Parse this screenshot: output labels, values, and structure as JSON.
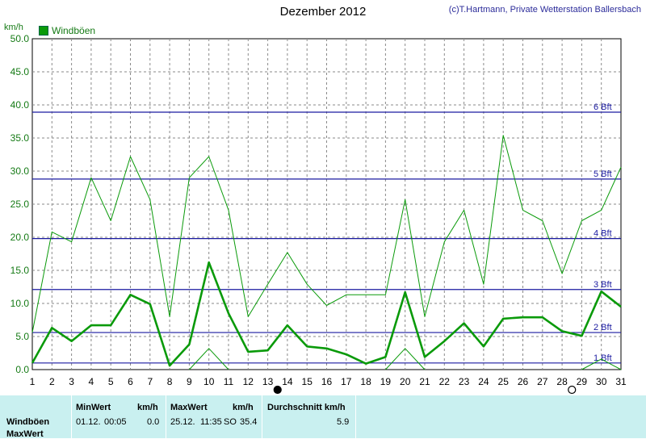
{
  "title": "Dezember 2012",
  "copyright": "(c)T.Hartmann, Private Wetterstation Ballersbach",
  "legend": {
    "label": "Windböen",
    "color": "#0a9a0a"
  },
  "y_unit": "km/h",
  "chart_data": {
    "type": "line",
    "title": "Dezember 2012",
    "xlabel": "",
    "ylabel": "km/h",
    "x": [
      1,
      2,
      3,
      4,
      5,
      6,
      7,
      8,
      9,
      10,
      11,
      12,
      13,
      14,
      15,
      16,
      17,
      18,
      19,
      20,
      21,
      22,
      23,
      24,
      25,
      26,
      27,
      28,
      29,
      30,
      31
    ],
    "xlim": [
      1,
      31
    ],
    "ylim": [
      0,
      50
    ],
    "yticks": [
      "0.0",
      "5.0",
      "10.0",
      "15.0",
      "20.0",
      "25.0",
      "30.0",
      "35.0",
      "40.0",
      "45.0",
      "50.0"
    ],
    "grid": true,
    "legend_position": "top-left",
    "series": [
      {
        "name": "Windböen",
        "role": "average",
        "color": "#0a9a0a",
        "values": [
          1.0,
          6.3,
          4.3,
          6.7,
          6.7,
          11.3,
          9.9,
          0.6,
          3.8,
          16.2,
          8.5,
          2.7,
          2.9,
          6.7,
          3.5,
          3.2,
          2.3,
          0.9,
          1.9,
          11.7,
          1.9,
          4.3,
          7.0,
          3.5,
          7.7,
          7.9,
          7.9,
          5.8,
          5.1,
          11.8,
          9.5
        ]
      },
      {
        "name": "",
        "role": "max",
        "color": "#0a9a0a",
        "values": [
          5.6,
          20.8,
          19.3,
          29.0,
          22.5,
          32.2,
          25.7,
          8.0,
          29.0,
          32.2,
          24.1,
          8.0,
          12.9,
          17.7,
          12.9,
          9.7,
          11.3,
          11.3,
          11.3,
          25.7,
          8.0,
          19.3,
          24.1,
          12.9,
          35.4,
          24.1,
          22.5,
          14.5,
          22.5,
          24.1,
          30.6
        ]
      },
      {
        "name": "",
        "role": "min",
        "color": "#0a9a0a",
        "values": [
          null,
          null,
          null,
          null,
          null,
          null,
          null,
          null,
          0.0,
          3.2,
          0.0,
          null,
          null,
          null,
          null,
          null,
          null,
          null,
          0.0,
          3.2,
          0.0,
          null,
          null,
          null,
          null,
          null,
          null,
          null,
          0.0,
          1.6,
          0.0
        ]
      }
    ],
    "reference_lines": [
      {
        "label": "1 Bft",
        "value": 1
      },
      {
        "label": "2 Bft",
        "value": 5.6
      },
      {
        "label": "3 Bft",
        "value": 12.1
      },
      {
        "label": "4 Bft",
        "value": 19.8
      },
      {
        "label": "5 Bft",
        "value": 28.8
      },
      {
        "label": "6 Bft",
        "value": 38.9
      }
    ],
    "moon_phases": [
      {
        "day": 13.5,
        "phase": "new"
      },
      {
        "day": 28.5,
        "phase": "full"
      }
    ]
  },
  "stats": {
    "row_label_1": "Windböen",
    "row_label_2": "MaxWert",
    "min_header": "MinWert",
    "min_unit": "km/h",
    "min_date": "01.12.",
    "min_time": "00:05",
    "min_value": "0.0",
    "max_header": "MaxWert",
    "max_unit": "km/h",
    "max_date": "25.12.",
    "max_time": "11:35",
    "max_dir": "SO",
    "max_value": "35.4",
    "avg_header": "Durchschnitt km/h",
    "avg_value": "5.9"
  }
}
